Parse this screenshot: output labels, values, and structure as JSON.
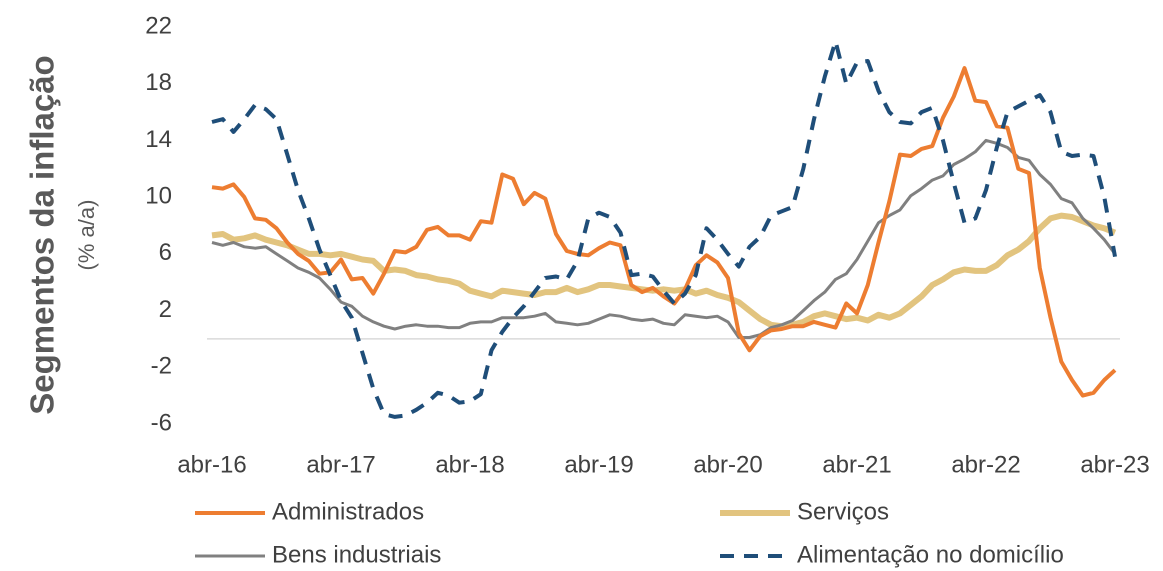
{
  "chart_data": {
    "type": "line",
    "y_label": "Segmentos da inflação",
    "y_sublabel": "(% a/a)",
    "categories": [
      "abr-16",
      null,
      null,
      null,
      null,
      null,
      null,
      null,
      null,
      null,
      null,
      null,
      "abr-17",
      null,
      null,
      null,
      null,
      null,
      null,
      null,
      null,
      null,
      null,
      null,
      "abr-18",
      null,
      null,
      null,
      null,
      null,
      null,
      null,
      null,
      null,
      null,
      null,
      "abr-19",
      null,
      null,
      null,
      null,
      null,
      null,
      null,
      null,
      null,
      null,
      null,
      "abr-20",
      null,
      null,
      null,
      null,
      null,
      null,
      null,
      null,
      null,
      null,
      null,
      "abr-21",
      null,
      null,
      null,
      null,
      null,
      null,
      null,
      null,
      null,
      null,
      null,
      "abr-22",
      null,
      null,
      null,
      null,
      null,
      null,
      null,
      null,
      null,
      null,
      null,
      "abr-23"
    ],
    "ylim": [
      -6,
      22
    ],
    "yticks": [
      -6,
      -2,
      2,
      6,
      10,
      14,
      18,
      22
    ],
    "series": [
      {
        "name": "Administrados",
        "color": "#ED7D31",
        "values": [
          10.7,
          10.6,
          10.9,
          10.0,
          8.5,
          8.4,
          7.8,
          6.8,
          6.0,
          5.5,
          4.6,
          4.7,
          5.6,
          4.2,
          4.3,
          3.2,
          4.6,
          6.2,
          6.1,
          6.5,
          7.7,
          7.9,
          7.3,
          7.3,
          7.0,
          8.3,
          8.2,
          11.6,
          11.3,
          9.5,
          10.3,
          9.9,
          7.4,
          6.2,
          6.0,
          5.9,
          6.4,
          6.8,
          6.6,
          3.8,
          3.3,
          3.6,
          3.0,
          2.5,
          3.5,
          5.2,
          5.9,
          5.4,
          4.3,
          0.4,
          -0.8,
          0.2,
          0.6,
          0.7,
          0.9,
          0.9,
          1.2,
          1.0,
          0.8,
          2.5,
          1.8,
          3.8,
          6.8,
          9.7,
          13.0,
          12.9,
          13.4,
          13.6,
          15.6,
          17.1,
          19.1,
          16.8,
          16.7,
          15.0,
          14.9,
          12.0,
          11.7,
          5.0,
          1.5,
          -1.6,
          -2.9,
          -4.0,
          -3.8,
          -2.9,
          -2.2
        ]
      },
      {
        "name": "Serviços",
        "color": "#E2C47F",
        "values": [
          7.3,
          7.4,
          7.0,
          7.1,
          7.3,
          7.0,
          6.8,
          6.6,
          6.3,
          6.0,
          6.0,
          5.9,
          6.0,
          5.8,
          5.6,
          5.5,
          4.8,
          4.9,
          4.8,
          4.5,
          4.4,
          4.2,
          4.1,
          3.9,
          3.4,
          3.2,
          3.0,
          3.4,
          3.3,
          3.2,
          3.1,
          3.3,
          3.3,
          3.6,
          3.3,
          3.5,
          3.8,
          3.8,
          3.7,
          3.6,
          3.5,
          3.4,
          3.5,
          3.4,
          3.5,
          3.2,
          3.4,
          3.1,
          2.9,
          2.6,
          2.0,
          1.4,
          1.0,
          0.9,
          1.0,
          1.2,
          1.6,
          1.8,
          1.6,
          1.4,
          1.5,
          1.3,
          1.7,
          1.5,
          1.8,
          2.4,
          3.0,
          3.8,
          4.2,
          4.7,
          4.9,
          4.8,
          4.8,
          5.2,
          5.9,
          6.3,
          6.9,
          7.8,
          8.5,
          8.7,
          8.6,
          8.3,
          8.0,
          7.8,
          7.5
        ]
      },
      {
        "name": "Bens industriais",
        "color": "#808080",
        "values": [
          6.8,
          6.6,
          6.8,
          6.5,
          6.4,
          6.5,
          6.0,
          5.5,
          5.0,
          4.7,
          4.3,
          3.5,
          2.6,
          2.3,
          1.6,
          1.2,
          0.9,
          0.7,
          0.9,
          1.0,
          0.9,
          0.9,
          0.8,
          0.8,
          1.1,
          1.2,
          1.2,
          1.5,
          1.5,
          1.5,
          1.6,
          1.8,
          1.2,
          1.1,
          1.0,
          1.1,
          1.4,
          1.7,
          1.6,
          1.4,
          1.3,
          1.4,
          1.1,
          1.0,
          1.7,
          1.6,
          1.5,
          1.6,
          1.2,
          0.1,
          0.1,
          0.3,
          0.8,
          1.0,
          1.3,
          2.0,
          2.7,
          3.3,
          4.2,
          4.6,
          5.6,
          6.9,
          8.2,
          8.7,
          9.1,
          10.1,
          10.6,
          11.2,
          11.5,
          12.3,
          12.7,
          13.2,
          14.0,
          13.8,
          13.5,
          12.8,
          12.6,
          11.6,
          10.9,
          9.9,
          9.6,
          8.5,
          7.8,
          7.0,
          6.0
        ]
      },
      {
        "name": "Alimentação no domicílio",
        "color": "#1F4E79",
        "dashed": true,
        "values": [
          15.3,
          15.5,
          14.6,
          15.5,
          16.5,
          16.2,
          15.5,
          13.0,
          10.5,
          8.5,
          6.3,
          4.5,
          2.7,
          1.5,
          -1.0,
          -3.5,
          -5.3,
          -5.5,
          -5.4,
          -5.0,
          -4.5,
          -3.8,
          -4.0,
          -4.5,
          -4.4,
          -3.9,
          -0.8,
          0.5,
          1.5,
          2.3,
          3.3,
          4.3,
          4.4,
          4.2,
          5.5,
          8.5,
          8.9,
          8.6,
          7.5,
          4.5,
          4.6,
          4.4,
          3.4,
          2.5,
          3.2,
          4.5,
          7.8,
          7.0,
          6.0,
          5.1,
          6.5,
          7.2,
          8.7,
          9.0,
          9.3,
          12.0,
          15.5,
          18.5,
          21.0,
          18.0,
          19.5,
          19.6,
          17.5,
          16.0,
          15.3,
          15.2,
          16.0,
          16.3,
          14.0,
          11.0,
          8.2,
          8.5,
          10.5,
          13.5,
          16.0,
          16.4,
          16.8,
          17.2,
          16.0,
          13.2,
          12.9,
          13.0,
          12.9,
          10.0,
          5.8
        ]
      }
    ]
  }
}
